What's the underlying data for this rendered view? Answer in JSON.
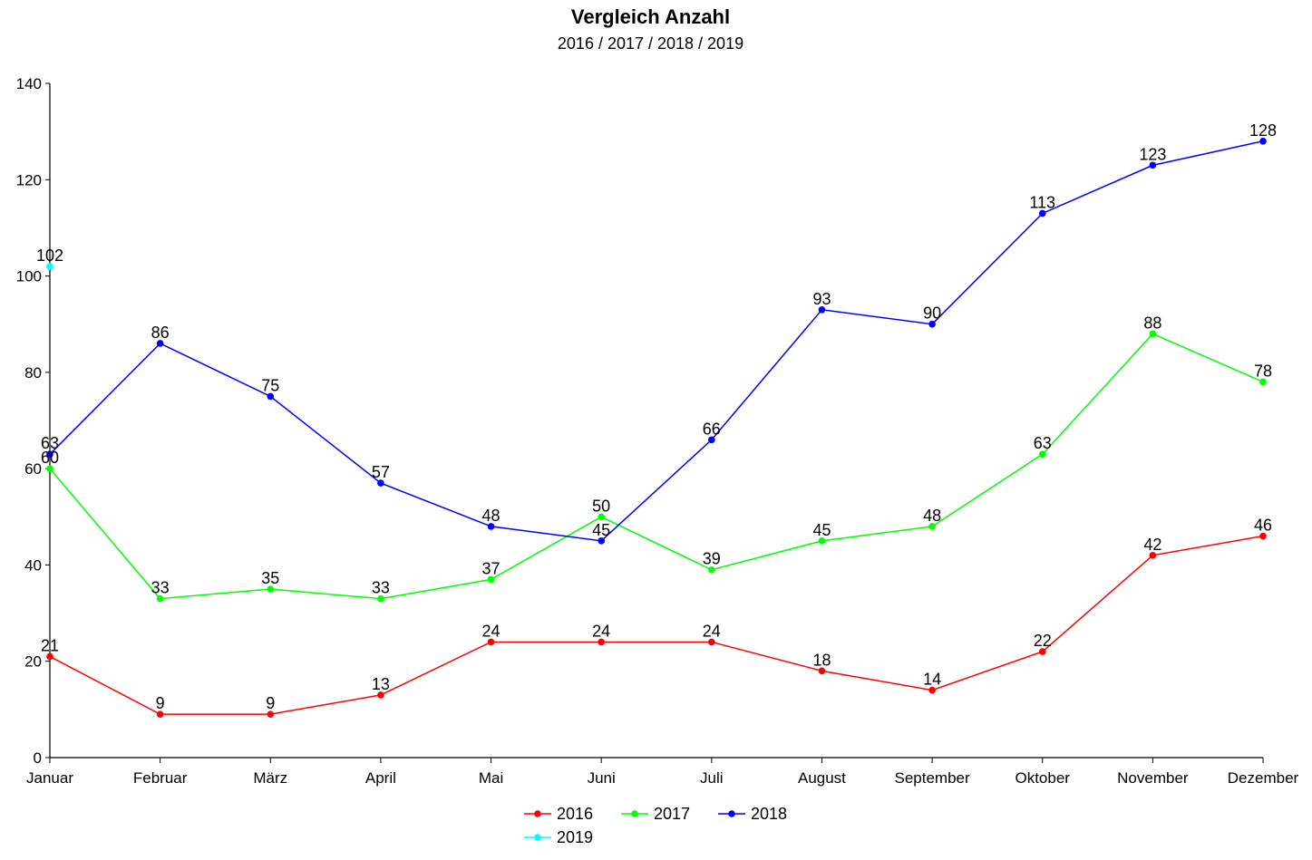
{
  "chart_data": {
    "type": "line",
    "title": "Vergleich Anzahl",
    "subtitle": "2016 / 2017 / 2018 / 2019",
    "xlabel": "",
    "ylabel": "",
    "ylim": [
      0,
      140
    ],
    "yticks": [
      0,
      20,
      40,
      60,
      80,
      100,
      120,
      140
    ],
    "grid": false,
    "legend_position": "bottom",
    "categories": [
      "Januar",
      "Februar",
      "März",
      "April",
      "Mai",
      "Juni",
      "Juli",
      "August",
      "September",
      "Oktober",
      "November",
      "Dezember"
    ],
    "series": [
      {
        "name": "2016",
        "color": "#ff0000",
        "values": [
          21,
          9,
          9,
          13,
          24,
          24,
          24,
          18,
          14,
          22,
          42,
          46
        ]
      },
      {
        "name": "2017",
        "color": "#00ff00",
        "values": [
          60,
          33,
          35,
          33,
          37,
          50,
          39,
          45,
          48,
          63,
          88,
          78
        ]
      },
      {
        "name": "2018",
        "color": "#0000ff",
        "values": [
          63,
          86,
          75,
          57,
          48,
          45,
          66,
          93,
          90,
          113,
          123,
          128
        ]
      },
      {
        "name": "2019",
        "color": "#00ffff",
        "values": [
          102,
          null,
          null,
          null,
          null,
          null,
          null,
          null,
          null,
          null,
          null,
          null
        ]
      }
    ]
  }
}
